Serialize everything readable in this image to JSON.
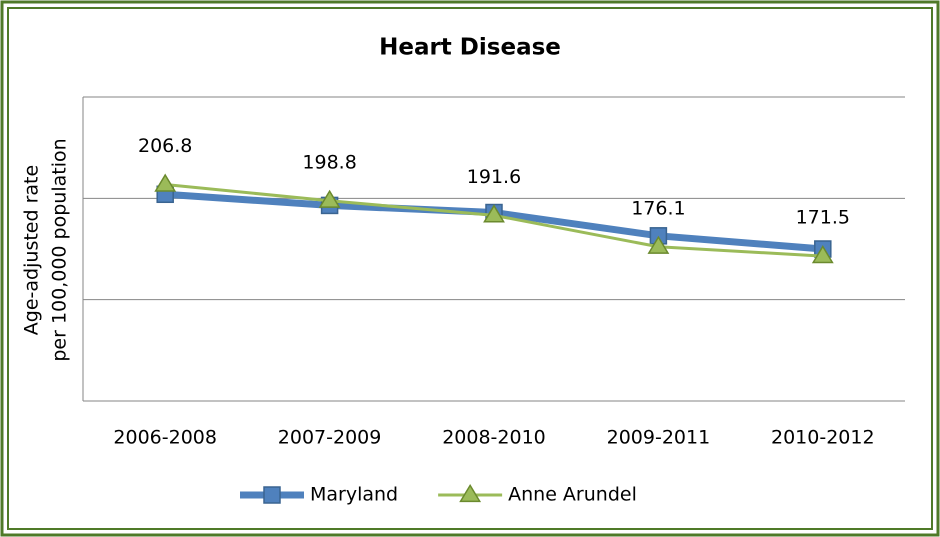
{
  "chart_data": {
    "type": "line",
    "title": "Heart Disease",
    "ylabel": [
      "Age-adjusted rate",
      "per 100,000 population"
    ],
    "categories": [
      "2006-2008",
      "2007-2009",
      "2008-2010",
      "2009-2011",
      "2010-2012"
    ],
    "series": [
      {
        "name": "Maryland",
        "color": "#4f81bd",
        "marker": "square",
        "values": [
          202,
          196.5,
          193,
          181.5,
          175
        ]
      },
      {
        "name": "Anne Arundel",
        "color": "#9bbb59",
        "marker": "triangle",
        "data_labels": true,
        "values": [
          206.8,
          198.8,
          191.6,
          176.1,
          171.5
        ]
      }
    ],
    "ylim": [
      100,
      250
    ],
    "yticks": [
      100,
      150,
      200,
      250
    ],
    "grid": true,
    "legend": "bottom"
  }
}
